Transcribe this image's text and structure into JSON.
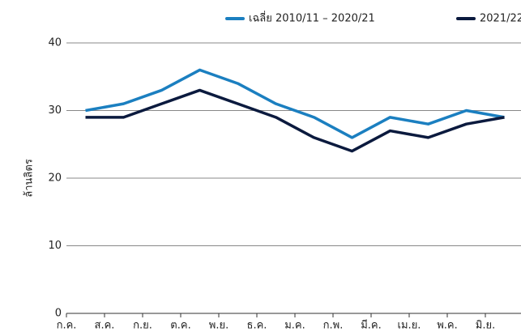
{
  "chart_data": {
    "type": "line",
    "y_label": "ล้านลิตร",
    "categories": [
      "ก.ค.",
      "ส.ค.",
      "ก.ย.",
      "ต.ค.",
      "พ.ย.",
      "ธ.ค.",
      "ม.ค.",
      "ก.พ.",
      "มี.ค.",
      "เม.ย.",
      "พ.ค.",
      "มิ.ย."
    ],
    "series": [
      {
        "name": "เฉลี่ย 2010/11 – 2020/21",
        "color": "#1b7fc0",
        "values": [
          30,
          31,
          33,
          36,
          34,
          31,
          29,
          26,
          29,
          28,
          30,
          29
        ]
      },
      {
        "name": "2021/22",
        "color": "#0b1a3e",
        "values": [
          29,
          29,
          31,
          33,
          31,
          29,
          26,
          24,
          27,
          26,
          28,
          29
        ]
      }
    ],
    "ylim": [
      0,
      40
    ],
    "yticks": [
      0,
      10,
      20,
      30,
      40
    ],
    "grid": true,
    "legend": "top"
  }
}
